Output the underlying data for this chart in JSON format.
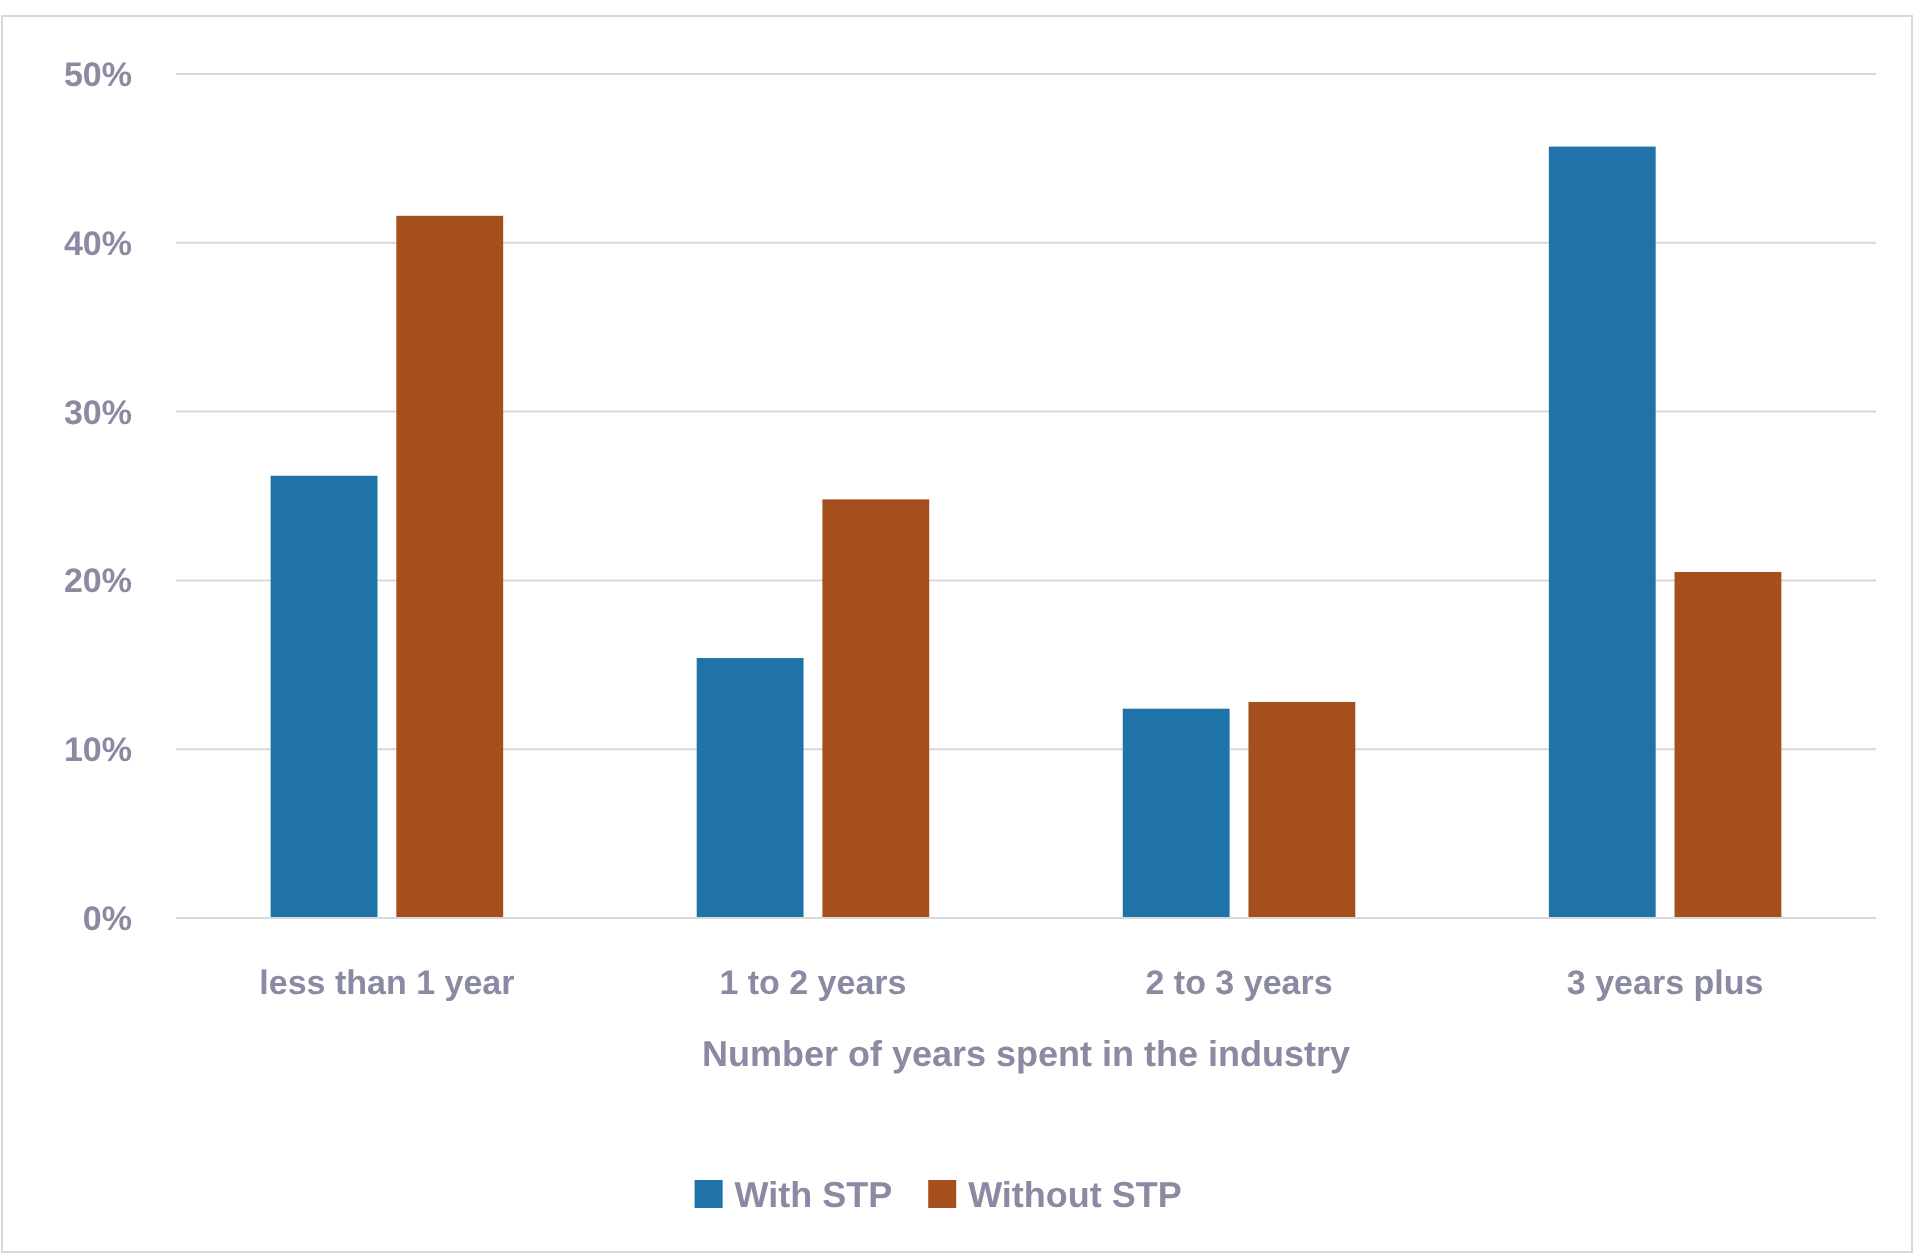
{
  "chart_data": {
    "type": "bar",
    "xlabel": "Number of years spent in the industry",
    "categories": [
      "less than 1 year",
      "1 to 2 years",
      "2 to 3 years",
      "3 years plus"
    ],
    "series": [
      {
        "name": "With STP",
        "color": "#1f73a8",
        "values": [
          26.2,
          15.4,
          12.4,
          45.7
        ]
      },
      {
        "name": "Without STP",
        "color": "#a5501c",
        "values": [
          41.6,
          24.8,
          12.8,
          20.5
        ]
      }
    ],
    "ylim": [
      0,
      50
    ],
    "yticks": [
      {
        "value": 0,
        "label": "0%"
      },
      {
        "value": 10,
        "label": "10%"
      },
      {
        "value": 20,
        "label": "20%"
      },
      {
        "value": 30,
        "label": "30%"
      },
      {
        "value": 40,
        "label": "40%"
      },
      {
        "value": 50,
        "label": "50%"
      }
    ],
    "grid": "y",
    "legend": "bottom"
  }
}
